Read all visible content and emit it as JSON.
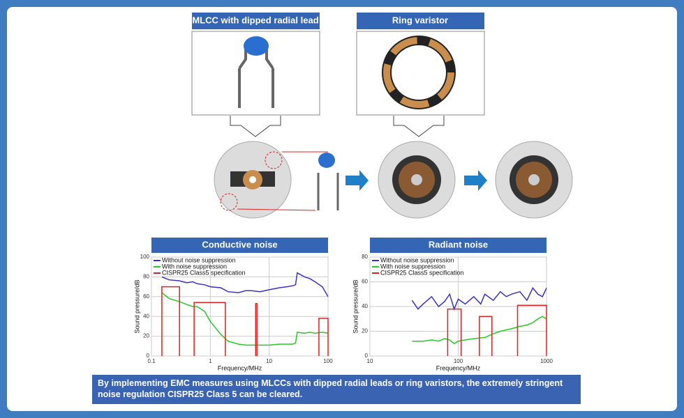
{
  "diagram": {
    "mlcc_label": "MLCC with dipped radial lead",
    "varistor_label": "Ring varistor"
  },
  "chart_data": [
    {
      "type": "line",
      "title": "Conductive noise",
      "x_label": "Frequency/MHz",
      "y_label": "Sound pressure/dB",
      "x_scale": "log",
      "xlim": [
        0.1,
        100
      ],
      "xticks": [
        0.1,
        1,
        10,
        100
      ],
      "ylim": [
        0,
        100
      ],
      "yticks": [
        0,
        20,
        40,
        60,
        80,
        100
      ],
      "grid": true,
      "legend": "top-left",
      "series": [
        {
          "name": "Without noise suppression",
          "color": "#3a2fc8",
          "x": [
            0.15,
            0.2,
            0.3,
            0.4,
            0.5,
            0.6,
            0.8,
            1,
            1.5,
            2,
            3,
            4,
            5,
            7,
            10,
            15,
            20,
            25,
            28,
            30,
            40,
            50,
            60,
            80,
            100
          ],
          "values": [
            80,
            77,
            76,
            74,
            75,
            73,
            72,
            70,
            69,
            65,
            64,
            66,
            66,
            65,
            67,
            69,
            70,
            71,
            72,
            84,
            80,
            78,
            75,
            70,
            60
          ]
        },
        {
          "name": "With noise suppression",
          "color": "#22cc22",
          "x": [
            0.15,
            0.2,
            0.3,
            0.4,
            0.5,
            0.6,
            0.8,
            1,
            1.5,
            2,
            3,
            4,
            5,
            7,
            10,
            15,
            20,
            25,
            28,
            30,
            40,
            50,
            60,
            80,
            100
          ],
          "values": [
            64,
            58,
            55,
            52,
            50,
            50,
            45,
            35,
            22,
            15,
            12,
            11,
            11,
            11,
            11,
            12,
            12,
            12,
            13,
            24,
            23,
            24,
            23,
            24,
            23
          ]
        },
        {
          "name": "CISPR25 Class5 specification",
          "color": "#e02020",
          "x": [
            0.15,
            0.15,
            0.3,
            0.3,
            0.4,
            0.53,
            0.53,
            1.8,
            1.8,
            3,
            5.9,
            5.9,
            6.2,
            6.2,
            30,
            70,
            70,
            100,
            100
          ],
          "values": [
            0,
            70,
            70,
            0,
            null,
            0,
            54,
            54,
            0,
            null,
            0,
            53,
            53,
            0,
            null,
            0,
            38,
            38,
            0
          ]
        }
      ]
    },
    {
      "type": "line",
      "title": "Radiant noise",
      "x_label": "Frequency/MHz",
      "y_label": "Sound pressure/dB",
      "x_scale": "log",
      "xlim": [
        10,
        1000
      ],
      "xticks": [
        10,
        100,
        1000
      ],
      "ylim": [
        0,
        80
      ],
      "yticks": [
        0,
        20,
        40,
        60,
        80
      ],
      "grid": true,
      "legend": "top-left",
      "series": [
        {
          "name": "Without noise suppression",
          "color": "#3a2fc8",
          "x": [
            30,
            35,
            40,
            50,
            60,
            70,
            80,
            90,
            100,
            120,
            150,
            180,
            200,
            250,
            300,
            350,
            400,
            500,
            600,
            700,
            800,
            900,
            1000
          ],
          "values": [
            45,
            38,
            42,
            48,
            40,
            44,
            50,
            38,
            46,
            42,
            48,
            42,
            50,
            45,
            52,
            48,
            50,
            52,
            45,
            55,
            50,
            48,
            55
          ]
        },
        {
          "name": "With noise suppression",
          "color": "#22cc22",
          "x": [
            30,
            40,
            50,
            60,
            70,
            80,
            90,
            100,
            120,
            150,
            200,
            250,
            300,
            400,
            500,
            600,
            700,
            800,
            900,
            1000
          ],
          "values": [
            12,
            12,
            13,
            12,
            14,
            13,
            10,
            12,
            13,
            14,
            15,
            18,
            20,
            22,
            24,
            25,
            27,
            30,
            32,
            30
          ]
        },
        {
          "name": "CISPR25 Class5 specification",
          "color": "#e02020",
          "x": [
            76,
            76,
            108,
            108,
            140,
            174,
            174,
            241,
            241,
            300,
            470,
            470,
            1000,
            1000
          ],
          "values": [
            0,
            38,
            38,
            0,
            null,
            0,
            32,
            32,
            0,
            null,
            0,
            41,
            41,
            0
          ]
        }
      ]
    }
  ],
  "footer": "By implementing EMC measures using MLCCs with dipped radial leads or ring varistors, the extremely stringent noise regulation CISPR25 Class 5 can be cleared."
}
